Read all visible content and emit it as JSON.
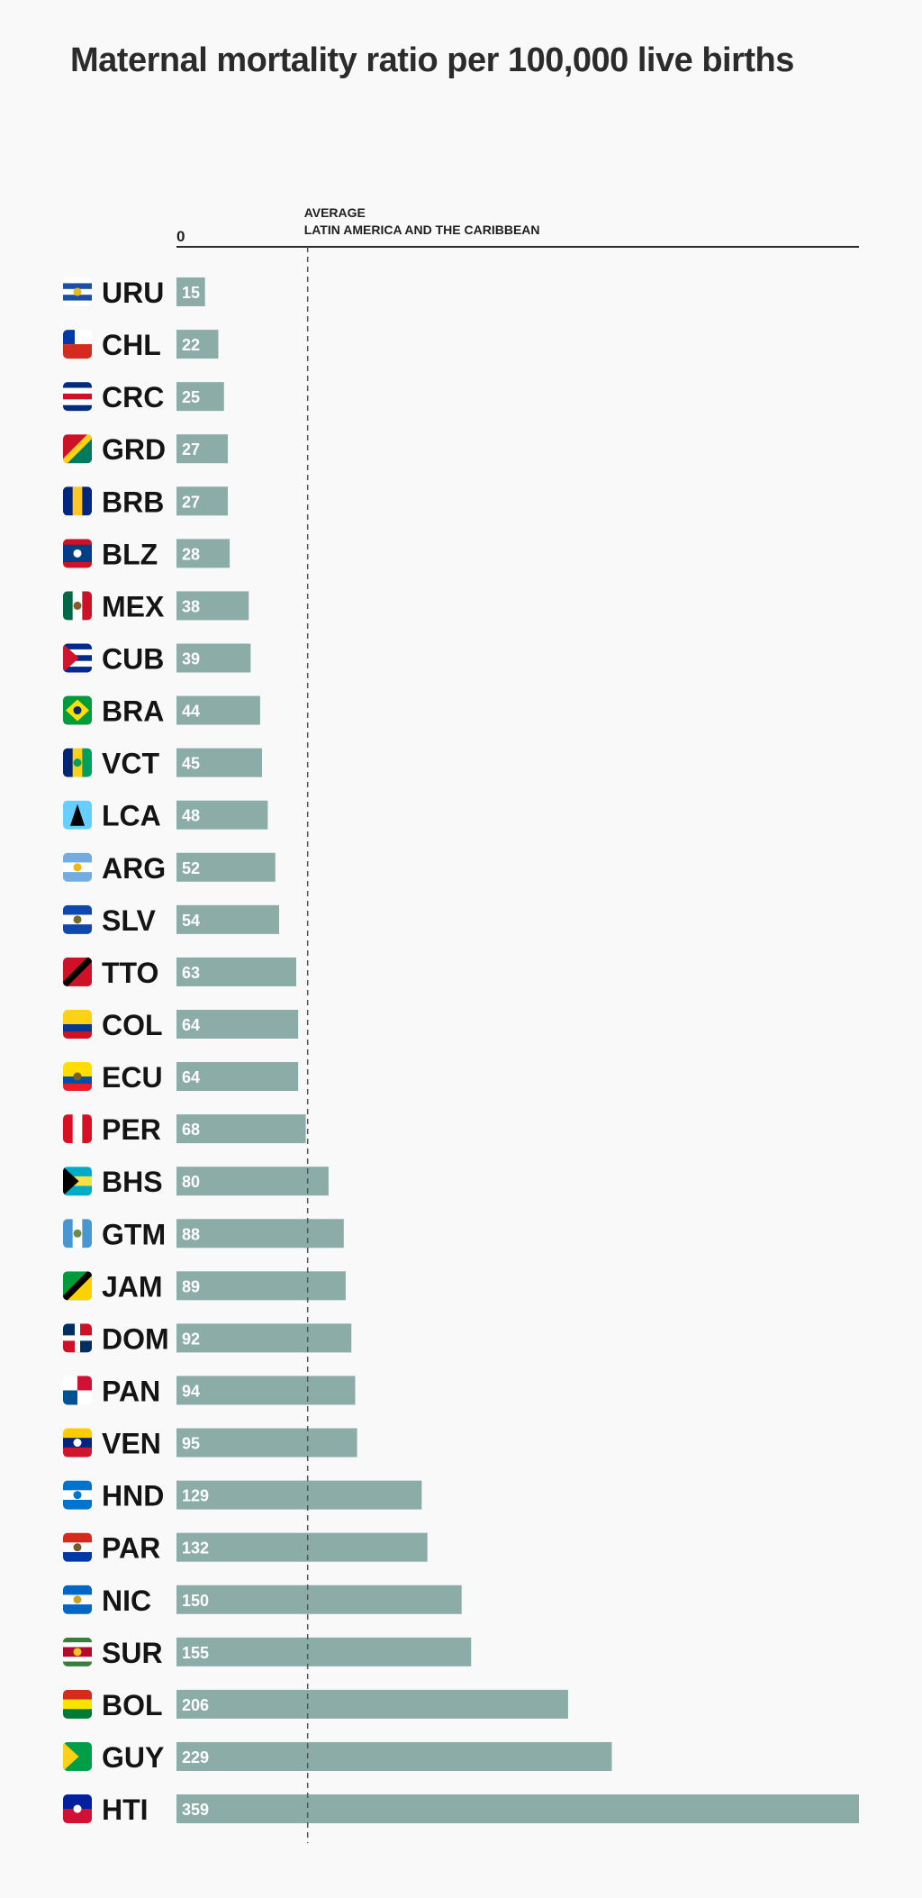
{
  "chart_data": {
    "type": "bar",
    "orientation": "horizontal",
    "title": "Maternal mortality ratio per 100,000 live births",
    "xlim": [
      0,
      359
    ],
    "axis_zero_label": "0",
    "average": {
      "label_line1": "AVERAGE",
      "label_line2": "LATIN AMERICA AND THE CARIBBEAN",
      "value": 69
    },
    "bar_color": "#8caca8",
    "categories": [
      "URU",
      "CHL",
      "CRC",
      "GRD",
      "BRB",
      "BLZ",
      "MEX",
      "CUB",
      "BRA",
      "VCT",
      "LCA",
      "ARG",
      "SLV",
      "TTO",
      "COL",
      "ECU",
      "PER",
      "BHS",
      "GTM",
      "JAM",
      "DOM",
      "PAN",
      "VEN",
      "HND",
      "PAR",
      "NIC",
      "SUR",
      "BOL",
      "GUY",
      "HTI"
    ],
    "values": [
      15,
      22,
      25,
      27,
      27,
      28,
      38,
      39,
      44,
      45,
      48,
      52,
      54,
      63,
      64,
      64,
      68,
      80,
      88,
      89,
      92,
      94,
      95,
      129,
      132,
      150,
      155,
      206,
      229,
      359
    ],
    "flags": [
      {
        "type": "hstripes",
        "colors": [
          "#ffffff",
          "#1a4fa3",
          "#ffffff",
          "#1a4fa3",
          "#ffffff"
        ],
        "emblem": "#e8b923"
      },
      {
        "type": "hstripes",
        "colors": [
          "#ffffff",
          "#d52b1e"
        ],
        "canton": "#0039a6"
      },
      {
        "type": "hstripes",
        "colors": [
          "#002b7f",
          "#ffffff",
          "#ce1126",
          "#ffffff",
          "#002b7f"
        ]
      },
      {
        "type": "diag",
        "colors": [
          "#ce1126",
          "#fcd116",
          "#007a5e"
        ]
      },
      {
        "type": "vstripes",
        "colors": [
          "#00267f",
          "#ffc726",
          "#00267f"
        ]
      },
      {
        "type": "hstripes",
        "colors": [
          "#ce1126",
          "#003f87",
          "#003f87",
          "#003f87",
          "#ce1126"
        ],
        "emblem": "#ffffff"
      },
      {
        "type": "vstripes",
        "colors": [
          "#006847",
          "#ffffff",
          "#ce1126"
        ],
        "emblem": "#8a5a2b"
      },
      {
        "type": "hstripes",
        "colors": [
          "#002a8f",
          "#ffffff",
          "#002a8f",
          "#ffffff",
          "#002a8f"
        ],
        "triangle": "#cf142b"
      },
      {
        "type": "solid",
        "colors": [
          "#009c3b"
        ],
        "diamond": "#ffdf00",
        "emblem": "#002776"
      },
      {
        "type": "vstripes",
        "colors": [
          "#002674",
          "#fcd116",
          "#009e60"
        ],
        "emblem": "#009e60"
      },
      {
        "type": "solid",
        "colors": [
          "#65cfff"
        ],
        "triangle_up": "#000000"
      },
      {
        "type": "hstripes",
        "colors": [
          "#74acdf",
          "#ffffff",
          "#74acdf"
        ],
        "emblem": "#f6b40e"
      },
      {
        "type": "hstripes",
        "colors": [
          "#0f47af",
          "#ffffff",
          "#0f47af"
        ],
        "emblem": "#7a6a2a"
      },
      {
        "type": "diag",
        "colors": [
          "#ce1126",
          "#000000",
          "#ce1126"
        ]
      },
      {
        "type": "hstripes",
        "colors": [
          "#fcd116",
          "#fcd116",
          "#003893",
          "#ce1126"
        ]
      },
      {
        "type": "hstripes",
        "colors": [
          "#ffdd00",
          "#ffdd00",
          "#034ea2",
          "#ed1c24"
        ],
        "emblem": "#7a5a2a"
      },
      {
        "type": "vstripes",
        "colors": [
          "#d91023",
          "#ffffff",
          "#d91023"
        ]
      },
      {
        "type": "hstripes",
        "colors": [
          "#00abc9",
          "#fae042",
          "#00abc9"
        ],
        "triangle": "#000000"
      },
      {
        "type": "vstripes",
        "colors": [
          "#4997d0",
          "#ffffff",
          "#4997d0"
        ],
        "emblem": "#6c8c4a"
      },
      {
        "type": "diag",
        "colors": [
          "#009b3a",
          "#000000",
          "#fed100"
        ]
      },
      {
        "type": "quarters",
        "colors": [
          "#002d62",
          "#ce1126",
          "#ce1126",
          "#002d62"
        ],
        "cross": "#ffffff"
      },
      {
        "type": "quarters",
        "colors": [
          "#ffffff",
          "#d21034",
          "#005293",
          "#ffffff"
        ]
      },
      {
        "type": "hstripes",
        "colors": [
          "#ffcc00",
          "#00247d",
          "#cf142b"
        ],
        "emblem": "#ffffff"
      },
      {
        "type": "hstripes",
        "colors": [
          "#0073cf",
          "#ffffff",
          "#0073cf"
        ],
        "emblem": "#0073cf"
      },
      {
        "type": "hstripes",
        "colors": [
          "#d52b1e",
          "#ffffff",
          "#0038a8"
        ],
        "emblem": "#7a5a2a"
      },
      {
        "type": "hstripes",
        "colors": [
          "#0067c6",
          "#ffffff",
          "#0067c6"
        ],
        "emblem": "#c9a227"
      },
      {
        "type": "hstripes",
        "colors": [
          "#377e3f",
          "#ffffff",
          "#b40a2d",
          "#b40a2d",
          "#ffffff",
          "#377e3f"
        ],
        "emblem": "#ecc81d"
      },
      {
        "type": "hstripes",
        "colors": [
          "#d52b1e",
          "#f9e300",
          "#007934"
        ]
      },
      {
        "type": "solid",
        "colors": [
          "#009e49"
        ],
        "triangle": "#fcd116"
      },
      {
        "type": "hstripes",
        "colors": [
          "#00209f",
          "#d21034"
        ],
        "emblem": "#ffffff"
      }
    ]
  }
}
